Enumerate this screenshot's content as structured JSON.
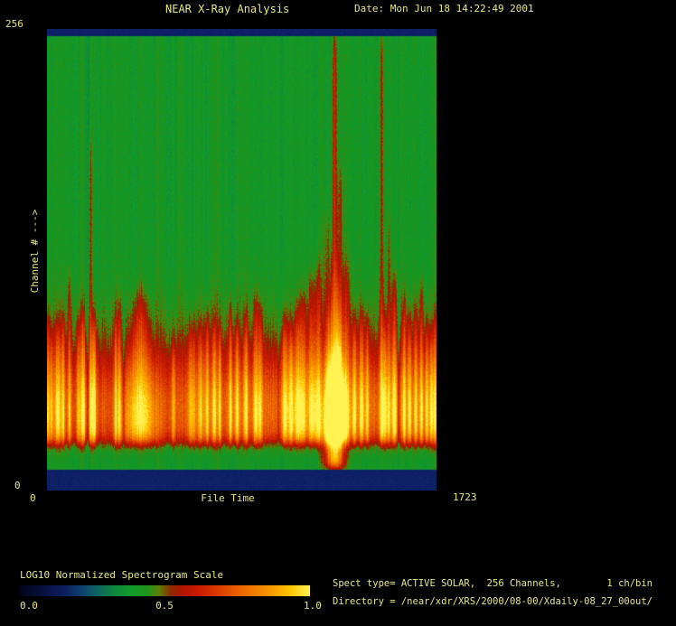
{
  "header": {
    "title": "NEAR X-Ray Analysis",
    "date_label": "Date: Mon Jun 18 14:22:49 2001"
  },
  "axes": {
    "y_max": "256",
    "y_min": "0",
    "y_title": "Channel # --->",
    "x_min": "0",
    "x_max": "1723",
    "x_title": "File Time"
  },
  "colorbar": {
    "title": "LOG10 Normalized Spectrogram Scale",
    "ticks": [
      "0.0",
      "0.5",
      "1.0"
    ]
  },
  "footer": {
    "spect_line": "Spect type= ACTIVE SOLAR,  256 Channels,        1 ch/bin",
    "directory_line": "Directory = /near/xdr/XRS/2000/08-00/Xdaily-08_27_00out/"
  },
  "colors": {
    "background": "#000000",
    "text": "#e6e687",
    "plot_navy_band": "#0e2166"
  },
  "chart_data": {
    "type": "heatmap",
    "title": "NEAR X-Ray Analysis",
    "xlabel": "File Time",
    "ylabel": "Channel #",
    "x_range": [
      0,
      1723
    ],
    "y_range": [
      0,
      256
    ],
    "scale_label": "LOG10 Normalized Spectrogram Scale",
    "scale_range": [
      0.0,
      1.0
    ],
    "legend_position": "bottom-left",
    "grid": false,
    "palette_stops": [
      [
        0.0,
        "#03041a"
      ],
      [
        0.08,
        "#081040"
      ],
      [
        0.15,
        "#0d1d5e"
      ],
      [
        0.2,
        "#0e3a6e"
      ],
      [
        0.26,
        "#0d6066"
      ],
      [
        0.32,
        "#0e8440"
      ],
      [
        0.38,
        "#109a2a"
      ],
      [
        0.44,
        "#20941c"
      ],
      [
        0.48,
        "#5c7e06"
      ],
      [
        0.52,
        "#8c2a00"
      ],
      [
        0.56,
        "#b01400"
      ],
      [
        0.62,
        "#cc1c00"
      ],
      [
        0.7,
        "#e04400"
      ],
      [
        0.78,
        "#ee6e00"
      ],
      [
        0.86,
        "#f89600"
      ],
      [
        0.93,
        "#ffc400"
      ],
      [
        1.0,
        "#fff352"
      ]
    ],
    "render": {
      "background_level": 0.4,
      "pixel_noise": 0.07,
      "column_noise": 0.05,
      "navy_top_channels": [
        252,
        256
      ],
      "navy_bottom_channels": [
        0,
        11.6
      ],
      "green_gap_channels": [
        11.6,
        26
      ],
      "band": {
        "main_center_ch": 42,
        "main_sigma_ch": 23,
        "main_amp": 0.25,
        "upper_center_ch": 60,
        "upper_sigma_ch": 30,
        "upper_amp": 0.09,
        "bottom_cutoff_ch": 26,
        "right_trend_start_t": 600,
        "right_trend_ramp_t": 250,
        "right_trend_amp": 0.05
      }
    },
    "events": [
      {
        "t": 4,
        "top": 95,
        "s": 0.26,
        "w": 8
      },
      {
        "t": 20,
        "top": 88,
        "s": 0.24,
        "w": 7
      },
      {
        "t": 48,
        "top": 92,
        "s": 0.3,
        "w": 14
      },
      {
        "t": 72,
        "top": 96,
        "s": 0.26,
        "w": 8
      },
      {
        "t": 100,
        "top": 120,
        "s": 0.26,
        "w": 7
      },
      {
        "t": 140,
        "top": 95,
        "s": 0.26,
        "w": 8
      },
      {
        "t": 160,
        "top": 100,
        "s": 0.32,
        "w": 10
      },
      {
        "t": 180,
        "top": 256,
        "s": -0.1,
        "w": 4
      },
      {
        "t": 192,
        "top": 190,
        "s": 0.3,
        "w": 7
      },
      {
        "t": 208,
        "top": 95,
        "s": 0.36,
        "w": 10
      },
      {
        "t": 304,
        "top": 98,
        "s": 0.28,
        "w": 7
      },
      {
        "t": 320,
        "top": 103,
        "s": 0.28,
        "w": 7
      },
      {
        "t": 340,
        "top": 108,
        "s": -0.14,
        "w": 5
      },
      {
        "t": 412,
        "top": 108,
        "s": 0.3,
        "w": 16,
        "flame": true
      },
      {
        "t": 560,
        "top": 80,
        "s": 0.2,
        "w": 10
      },
      {
        "t": 640,
        "top": 90,
        "s": 0.24,
        "w": 18
      },
      {
        "t": 680,
        "top": 92,
        "s": 0.24,
        "w": 12
      },
      {
        "t": 708,
        "top": 96,
        "s": 0.28,
        "w": 10
      },
      {
        "t": 740,
        "top": 94,
        "s": 0.28,
        "w": 9
      },
      {
        "t": 764,
        "top": 90,
        "s": 0.26,
        "w": 7
      },
      {
        "t": 812,
        "top": 103,
        "s": 0.28,
        "w": 9
      },
      {
        "t": 840,
        "top": 92,
        "s": 0.24,
        "w": 10
      },
      {
        "t": 880,
        "top": 98,
        "s": 0.26,
        "w": 9
      },
      {
        "t": 924,
        "top": 108,
        "s": 0.28,
        "w": 10
      },
      {
        "t": 944,
        "top": 102,
        "s": 0.26,
        "w": 9
      },
      {
        "t": 1024,
        "top": 110,
        "s": -0.12,
        "w": 5
      },
      {
        "t": 1052,
        "top": 95,
        "s": 0.28,
        "w": 13
      },
      {
        "t": 1080,
        "top": 90,
        "s": 0.28,
        "w": 13
      },
      {
        "t": 1108,
        "top": 100,
        "s": 0.28,
        "w": 13
      },
      {
        "t": 1132,
        "top": 108,
        "s": 0.26,
        "w": 16
      },
      {
        "t": 1172,
        "top": 118,
        "s": 0.28,
        "w": 18
      },
      {
        "t": 1200,
        "top": 128,
        "s": 0.28,
        "w": 14
      },
      {
        "t": 1240,
        "top": 150,
        "s": 0.24,
        "w": 16
      },
      {
        "t": 1272,
        "top": 250,
        "s": 0.55,
        "w": 9,
        "flame": true,
        "deep": true
      },
      {
        "t": 1296,
        "top": 175,
        "s": 0.28,
        "w": 14
      },
      {
        "t": 1324,
        "top": 128,
        "s": 0.26,
        "w": 16
      },
      {
        "t": 1360,
        "top": 96,
        "s": 0.28,
        "w": 10
      },
      {
        "t": 1392,
        "top": 100,
        "s": 0.28,
        "w": 10
      },
      {
        "t": 1416,
        "top": 95,
        "s": 0.26,
        "w": 8
      },
      {
        "t": 1480,
        "top": 252,
        "s": 0.34,
        "w": 8
      },
      {
        "t": 1496,
        "top": 95,
        "s": 0.26,
        "w": 9
      },
      {
        "t": 1512,
        "top": 150,
        "s": 0.24,
        "w": 7
      },
      {
        "t": 1536,
        "top": 120,
        "s": 0.32,
        "w": 11
      },
      {
        "t": 1556,
        "top": 110,
        "s": -0.12,
        "w": 5
      },
      {
        "t": 1580,
        "top": 106,
        "s": 0.28,
        "w": 9
      },
      {
        "t": 1604,
        "top": 96,
        "s": 0.28,
        "w": 9
      },
      {
        "t": 1632,
        "top": 102,
        "s": 0.26,
        "w": 8
      },
      {
        "t": 1656,
        "top": 116,
        "s": 0.28,
        "w": 8
      },
      {
        "t": 1680,
        "top": 92,
        "s": 0.26,
        "w": 8
      },
      {
        "t": 1700,
        "top": 86,
        "s": 0.26,
        "w": 8
      },
      {
        "t": 1716,
        "top": 95,
        "s": 0.24,
        "w": 8
      }
    ]
  }
}
